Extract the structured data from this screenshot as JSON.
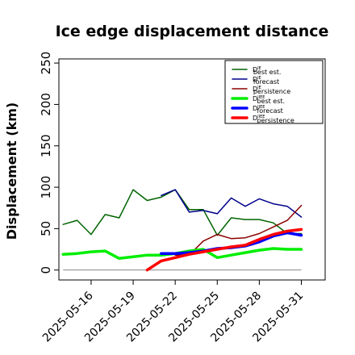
{
  "chart_data": {
    "type": "line",
    "title": "Ice edge displacement distance",
    "ylabel": "Displacement (km)",
    "xlabel": "",
    "ylim": [
      0,
      250
    ],
    "y_ticks": [
      0,
      50,
      100,
      150,
      200,
      250
    ],
    "x_ticks": [
      {
        "label": "2025-05-16",
        "color": "#000000"
      },
      {
        "label": "2025-05-19",
        "color": "#000000"
      },
      {
        "label": "2025-05-22",
        "color": "#228B22"
      },
      {
        "label": "2025-05-25",
        "color": "#000000"
      },
      {
        "label": "2025-05-28",
        "color": "#000000"
      },
      {
        "label": "2025-05-31",
        "color": "#000000"
      }
    ],
    "x_tick_index": [
      2,
      5,
      8,
      11,
      14,
      17
    ],
    "x_range": [
      -0.3,
      18.7
    ],
    "grid": false,
    "legend_position": "top-right",
    "baseline": {
      "y": 0,
      "from": 0,
      "to": 17,
      "color": "#888888"
    },
    "series": [
      {
        "name": "D^{ℝ}_{best est.}",
        "legend_main": "D",
        "legend_sup": "IE",
        "legend_sub": "best est.",
        "color": "#006400",
        "width": 1.5,
        "x": [
          0,
          1,
          2,
          3,
          4,
          5,
          6,
          7,
          8,
          9,
          10,
          11,
          12,
          13,
          14,
          15,
          16,
          17
        ],
        "y": [
          55,
          60,
          43,
          67,
          63,
          97,
          84,
          88,
          97,
          73,
          73,
          42,
          63,
          61,
          61,
          57,
          44,
          44
        ]
      },
      {
        "name": "D^{ℝ}_{forecast}",
        "legend_main": "D",
        "legend_sup": "IE",
        "legend_sub": "forecast",
        "color": "#00008B",
        "width": 1.5,
        "x": [
          7,
          8,
          9,
          10,
          11,
          12,
          13,
          14,
          15,
          16,
          17
        ],
        "y": [
          90,
          97,
          70,
          72,
          68,
          87,
          77,
          86,
          80,
          77,
          64
        ]
      },
      {
        "name": "D^{ℝ}_{persistence}",
        "legend_main": "D",
        "legend_sup": "IE",
        "legend_sub": "persistence",
        "color": "#8B0000",
        "width": 1.5,
        "x": [
          8,
          9,
          10,
          11,
          12,
          13,
          14,
          15,
          16,
          17
        ],
        "y": [
          18,
          18,
          35,
          43,
          38,
          39,
          44,
          52,
          60,
          78
        ]
      },
      {
        "name": "D^{ℝℝℝ}_{best est.}",
        "legend_main": "D",
        "legend_sup": "IIEE",
        "legend_sub": "best est.",
        "color": "#00EE00",
        "width": 3.5,
        "x": [
          0,
          1,
          2,
          3,
          4,
          5,
          6,
          7,
          8,
          9,
          10,
          11,
          12,
          13,
          14,
          15,
          16,
          17
        ],
        "y": [
          19,
          20,
          22,
          23,
          14,
          16,
          18,
          18,
          20,
          23,
          25,
          15,
          18,
          21,
          24,
          26,
          25,
          25
        ]
      },
      {
        "name": "D^{ℝℝℝ}_{forecast}",
        "legend_main": "D",
        "legend_sup": "IIEE",
        "legend_sub": "forecast",
        "color": "#0000FF",
        "width": 3.5,
        "x": [
          7,
          8,
          9,
          10,
          11,
          12,
          13,
          14,
          15,
          16,
          17
        ],
        "y": [
          20,
          20,
          21,
          23,
          26,
          27,
          29,
          34,
          41,
          45,
          42
        ]
      },
      {
        "name": "D^{ℝℝℝ}_{persistence}",
        "legend_main": "D",
        "legend_sup": "IIEE",
        "legend_sub": "persistence",
        "color": "#FF0000",
        "width": 3.5,
        "x": [
          6,
          7,
          8,
          9,
          10,
          11,
          12,
          13,
          14,
          15,
          16,
          17
        ],
        "y": [
          0,
          11,
          15,
          19,
          22,
          25,
          28,
          30,
          37,
          43,
          47,
          49
        ]
      }
    ]
  }
}
